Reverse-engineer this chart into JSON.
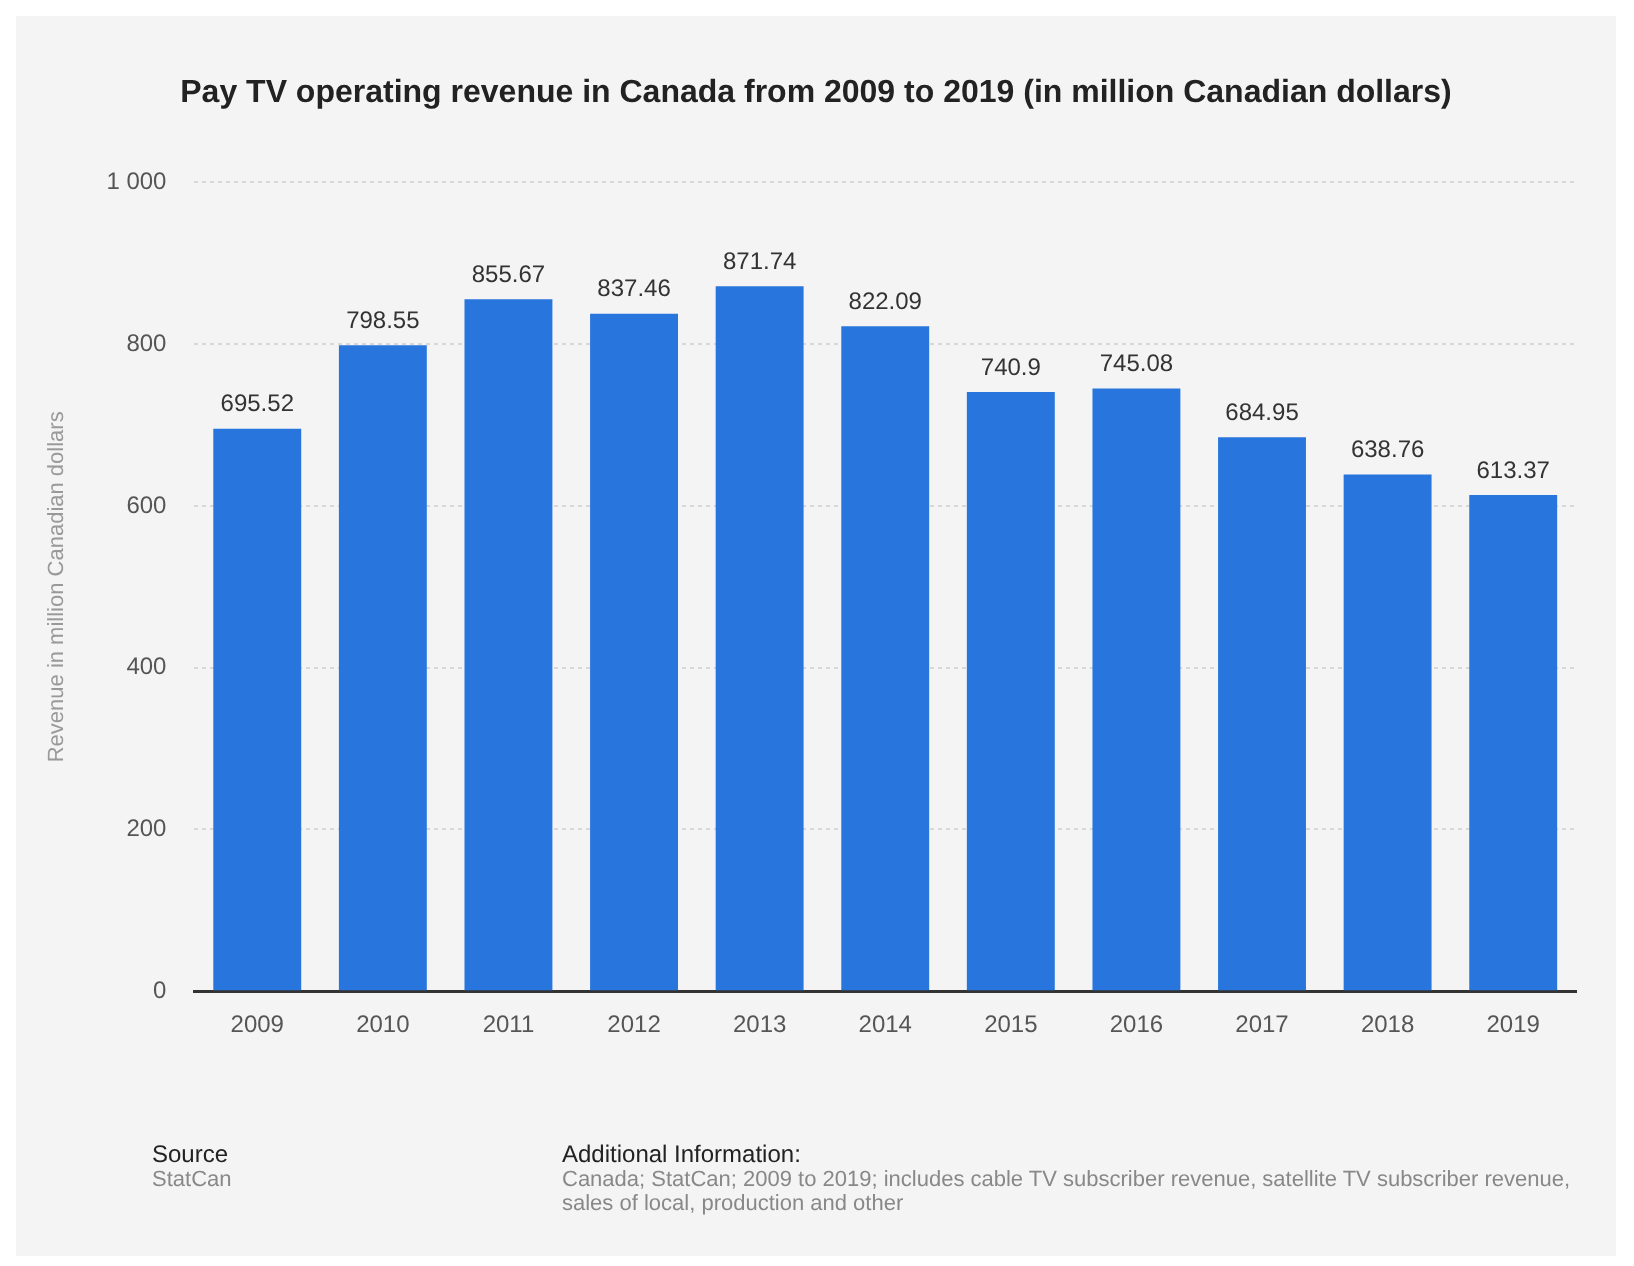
{
  "chart_data": {
    "type": "bar",
    "title": "Pay TV operating revenue in Canada from 2009 to 2019 (in million Canadian dollars)",
    "ylabel": "Revenue in million Canadian dollars",
    "categories": [
      "2009",
      "2010",
      "2011",
      "2012",
      "2013",
      "2014",
      "2015",
      "2016",
      "2017",
      "2018",
      "2019"
    ],
    "values": [
      695.52,
      798.55,
      855.67,
      837.46,
      871.74,
      822.09,
      740.9,
      745.08,
      684.95,
      638.76,
      613.37
    ],
    "color": "#2876dd",
    "ylim": [
      0,
      1000
    ],
    "yticks": [
      0,
      200,
      400,
      600,
      800,
      {
        "value": 1000,
        "label": "1 000"
      }
    ],
    "grid": "y",
    "data_labels": true,
    "legend": false,
    "annotations": [
      "Source",
      "StatCan",
      "Additional Information:",
      "Canada; StatCan; 2009 to 2019; includes cable TV subscriber revenue, satellite TV subscriber revenue, sales of local, production and other"
    ]
  }
}
